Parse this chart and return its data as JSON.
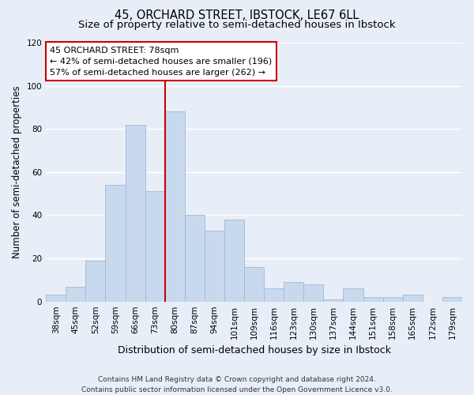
{
  "title": "45, ORCHARD STREET, IBSTOCK, LE67 6LL",
  "subtitle": "Size of property relative to semi-detached houses in Ibstock",
  "xlabel": "Distribution of semi-detached houses by size in Ibstock",
  "ylabel": "Number of semi-detached properties",
  "bar_labels": [
    "38sqm",
    "45sqm",
    "52sqm",
    "59sqm",
    "66sqm",
    "73sqm",
    "80sqm",
    "87sqm",
    "94sqm",
    "101sqm",
    "109sqm",
    "116sqm",
    "123sqm",
    "130sqm",
    "137sqm",
    "144sqm",
    "151sqm",
    "158sqm",
    "165sqm",
    "172sqm",
    "179sqm"
  ],
  "bar_values": [
    3,
    7,
    19,
    54,
    82,
    51,
    88,
    40,
    33,
    38,
    16,
    6,
    9,
    8,
    1,
    6,
    2,
    2,
    3,
    0,
    2
  ],
  "bar_color": "#c8d9ee",
  "bar_edgecolor": "#a0b8d8",
  "vline_color": "#cc0000",
  "ylim": [
    0,
    120
  ],
  "yticks": [
    0,
    20,
    40,
    60,
    80,
    100,
    120
  ],
  "annotation_title": "45 ORCHARD STREET: 78sqm",
  "annotation_line1": "← 42% of semi-detached houses are smaller (196)",
  "annotation_line2": "57% of semi-detached houses are larger (262) →",
  "annotation_box_facecolor": "#ffffff",
  "annotation_box_edgecolor": "#cc0000",
  "footer_line1": "Contains HM Land Registry data © Crown copyright and database right 2024.",
  "footer_line2": "Contains public sector information licensed under the Open Government Licence v3.0.",
  "background_color": "#e8eef8",
  "grid_color": "#ffffff",
  "title_fontsize": 10.5,
  "subtitle_fontsize": 9.5,
  "ylabel_fontsize": 8.5,
  "xlabel_fontsize": 9,
  "tick_fontsize": 7.5,
  "annotation_fontsize": 8,
  "footer_fontsize": 6.5
}
